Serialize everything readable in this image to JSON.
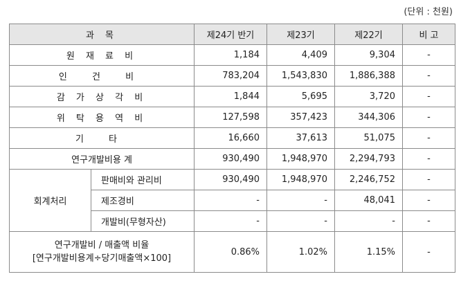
{
  "unit_note": "(단위 : 천원)",
  "headers": {
    "item": "과     목",
    "p24": "제24기 반기",
    "p23": "제23기",
    "p22": "제22기",
    "note": "비 고"
  },
  "rows": [
    {
      "label": "원 재 료 비",
      "p24": "1,184",
      "p23": "4,409",
      "p22": "9,304",
      "note": "-"
    },
    {
      "label": "인  건  비",
      "p24": "783,204",
      "p23": "1,543,830",
      "p22": "1,886,388",
      "note": "-"
    },
    {
      "label": "감 가 상 각 비",
      "p24": "1,844",
      "p23": "5,695",
      "p22": "3,720",
      "note": "-"
    },
    {
      "label": "위 탁 용 역 비",
      "p24": "127,598",
      "p23": "357,423",
      "p22": "344,306",
      "note": "-"
    },
    {
      "label": "기    타",
      "p24": "16,660",
      "p23": "37,613",
      "p22": "51,075",
      "note": "-"
    },
    {
      "label": "연구개발비용 계",
      "p24": "930,490",
      "p23": "1,948,970",
      "p22": "2,294,793",
      "note": "-"
    }
  ],
  "accounting": {
    "group_label": "회계처리",
    "sub": [
      {
        "label": "판매비와 관리비",
        "p24": "930,490",
        "p23": "1,948,970",
        "p22": "2,246,752",
        "note": "-"
      },
      {
        "label": "제조경비",
        "p24": "-",
        "p23": "-",
        "p22": "48,041",
        "note": "-"
      },
      {
        "label": "개발비(무형자산)",
        "p24": "-",
        "p23": "-",
        "p22": "-",
        "note": "-"
      }
    ]
  },
  "ratio": {
    "label_line1": "연구개발비 / 매출액 비율",
    "label_line2": "[연구개발비용계÷당기매출액×100]",
    "p24": "0.86%",
    "p23": "1.02%",
    "p22": "1.15%",
    "note": "-"
  }
}
